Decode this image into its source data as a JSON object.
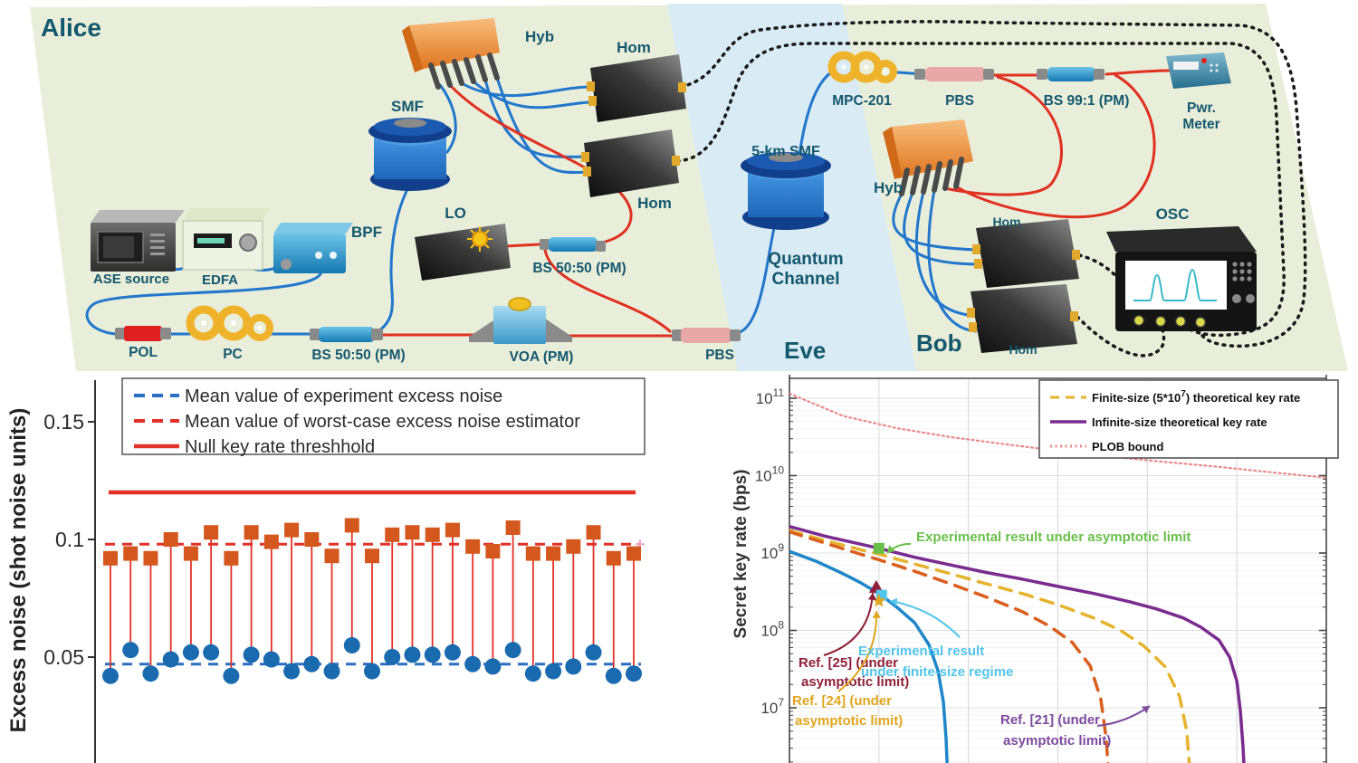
{
  "figure": {
    "panels": [
      "experimental-setup-diagram",
      "excess-noise-chart",
      "secret-key-rate-chart"
    ]
  },
  "diagram": {
    "parties": {
      "alice": "Alice",
      "eve": "Eve",
      "bob": "Bob"
    },
    "labels": {
      "ase_source": "ASE source",
      "edfa": "EDFA",
      "bpf": "BPF",
      "smf": "SMF",
      "hyb_alice": "Hyb",
      "hom_alice_top": "Hom",
      "hom_alice_bottom": "Hom",
      "lo": "LO",
      "bs5050_mid": "BS 50:50 (PM)",
      "pol": "POL",
      "pc": "PC",
      "bs5050_bottom": "BS 50:50 (PM)",
      "voa": "VOA (PM)",
      "pbs_alice": "PBS",
      "smf5": "5-km SMF",
      "quantum_line1": "Quantum",
      "quantum_line2": "Channel",
      "mpc": "MPC-201",
      "pbs_bob": "PBS",
      "bs991": "BS 99:1 (PM)",
      "pwr_line1": "Pwr.",
      "pwr_line2": "Meter",
      "hyb_bob": "Hyb",
      "hom_bob_top": "Hom",
      "hom_bob_bottom": "Hom",
      "osc": "OSC"
    },
    "colors": {
      "background": "#e9eedb",
      "eve_band": "#d9ebf5",
      "label_text": "#14586e",
      "fiber_blue": "#2277cc",
      "fiber_red": "#e03020",
      "wire_dashed": "#1a1a1a"
    }
  },
  "chart_data": [
    {
      "type": "scatter",
      "title": "",
      "xlabel": "",
      "ylabel": "Excess noise (shot noise units)",
      "yticks": [
        0.05,
        0.1,
        0.15
      ],
      "ylim": [
        0.005,
        0.168
      ],
      "grid": false,
      "legend_position": "top-left",
      "x": [
        1,
        2,
        3,
        4,
        5,
        6,
        7,
        8,
        9,
        10,
        11,
        12,
        13,
        14,
        15,
        16,
        17,
        18,
        19,
        20,
        21,
        22,
        23,
        24,
        25,
        26,
        27
      ],
      "series": [
        {
          "name": "Worst-case excess noise estimator",
          "marker": "square",
          "color": "#d4581e",
          "values": [
            0.092,
            0.094,
            0.092,
            0.1,
            0.094,
            0.103,
            0.092,
            0.103,
            0.099,
            0.104,
            0.1,
            0.093,
            0.106,
            0.093,
            0.102,
            0.103,
            0.102,
            0.104,
            0.097,
            0.095,
            0.105,
            0.094,
            0.094,
            0.097,
            0.103,
            0.092,
            0.094
          ]
        },
        {
          "name": "Experiment excess noise",
          "marker": "circle",
          "color": "#1a6ab0",
          "values": [
            0.042,
            0.053,
            0.043,
            0.049,
            0.052,
            0.052,
            0.042,
            0.051,
            0.049,
            0.044,
            0.047,
            0.044,
            0.055,
            0.044,
            0.05,
            0.051,
            0.051,
            0.052,
            0.047,
            0.046,
            0.053,
            0.043,
            0.044,
            0.046,
            0.052,
            0.042,
            0.043
          ]
        }
      ],
      "reference_lines": [
        {
          "label": "Mean value of experiment excess noise",
          "style": "dashed",
          "color": "#2a6fc2",
          "value": 0.047
        },
        {
          "label": "Mean value of worst-case excess noise estimator",
          "style": "dashed",
          "color": "#e23128",
          "value": 0.098
        },
        {
          "label": "Null key rate threshhold",
          "style": "solid",
          "color": "#e23128",
          "value": 0.12
        }
      ]
    },
    {
      "type": "line",
      "title": "",
      "xlabel": "",
      "ylabel": "Secret key rate (bps)",
      "yscale": "log",
      "ylim": [
        2000000.0,
        200000000000.0
      ],
      "xlim": [
        0,
        30
      ],
      "x_gridlines": [
        5,
        10,
        15,
        20,
        25,
        30
      ],
      "x_tick_labels_visible": false,
      "grid": true,
      "legend_position": "top-right",
      "yticks": [
        {
          "base": "10",
          "exp": "11",
          "value": 100000000000.0
        },
        {
          "base": "10",
          "exp": "10",
          "value": 10000000000.0
        },
        {
          "base": "10",
          "exp": "9",
          "value": 1000000000.0
        },
        {
          "base": "10",
          "exp": "8",
          "value": 100000000.0
        },
        {
          "base": "10",
          "exp": "7",
          "value": 10000000.0
        }
      ],
      "legend": [
        {
          "pre": "Finite-size (5*10",
          "sup": "7",
          "post": ") theoretical key rate",
          "style": "dashed",
          "color": "#e5b32d"
        },
        {
          "pre": "Infinite-size theoretical key rate",
          "sup": "",
          "post": "",
          "style": "solid",
          "color": "#7a2b8f"
        },
        {
          "pre": "PLOB bound",
          "sup": "",
          "post": "",
          "style": "dotted",
          "color": "#e98989"
        }
      ],
      "series": [
        {
          "id": "plob",
          "name": "PLOB bound",
          "color": "#e98989",
          "style": "dotted",
          "width": 2.2,
          "points": [
            [
              0,
              115000000000.0
            ],
            [
              3,
              59000000000.0
            ],
            [
              6,
              41000000000.0
            ],
            [
              9,
              31500000000.0
            ],
            [
              12,
              25500000000.0
            ],
            [
              15,
              21000000000.0
            ],
            [
              18,
              17500000000.0
            ],
            [
              21,
              15000000000.0
            ],
            [
              24,
              13000000000.0
            ],
            [
              27,
              11000000000.0
            ],
            [
              30,
              9400000000.0
            ]
          ]
        },
        {
          "id": "infinite",
          "name": "Infinite-size theoretical key rate",
          "color": "#7a2b8f",
          "style": "solid",
          "width": 3.5,
          "points": [
            [
              0,
              2200000000.0
            ],
            [
              2,
              1650000000.0
            ],
            [
              4,
              1300000000.0
            ],
            [
              5,
              1150000000.0
            ],
            [
              7,
              880000000.0
            ],
            [
              9,
              700000000.0
            ],
            [
              11,
              560000000.0
            ],
            [
              13,
              460000000.0
            ],
            [
              15,
              370000000.0
            ],
            [
              17,
              300000000.0
            ],
            [
              19,
              235000000.0
            ],
            [
              20.5,
              190000000.0
            ],
            [
              22,
              145000000.0
            ],
            [
              23,
              110000000.0
            ],
            [
              24,
              75000000.0
            ],
            [
              24.6,
              45000000.0
            ],
            [
              25,
              22000000.0
            ],
            [
              25.2,
              9000000.0
            ],
            [
              25.35,
              3000000.0
            ],
            [
              25.45,
              1000000.0
            ]
          ]
        },
        {
          "id": "finite",
          "name": "Finite-size (5*10^7) theoretical key rate",
          "color": "#e5b32d",
          "style": "dashed",
          "width": 3.5,
          "points": [
            [
              0,
              1950000000.0
            ],
            [
              2,
              1450000000.0
            ],
            [
              4,
              1100000000.0
            ],
            [
              5,
              970000000.0
            ],
            [
              7,
              720000000.0
            ],
            [
              9,
              540000000.0
            ],
            [
              11,
              400000000.0
            ],
            [
              13,
              300000000.0
            ],
            [
              15,
              215000000.0
            ],
            [
              17,
              145000000.0
            ],
            [
              18.5,
              100000000.0
            ],
            [
              19.8,
              63000000.0
            ],
            [
              21,
              34000000.0
            ],
            [
              21.8,
              14000000.0
            ],
            [
              22.2,
              5000000.0
            ],
            [
              22.4,
              1300000.0
            ]
          ]
        },
        {
          "id": "dashed_orange",
          "name": "secondary dashed curve",
          "color": "#d95f1e",
          "style": "dashed",
          "width": 3.5,
          "points": [
            [
              0,
              1880000000.0
            ],
            [
              2,
              1340000000.0
            ],
            [
              4,
              960000000.0
            ],
            [
              5,
              820000000.0
            ],
            [
              7,
              580000000.0
            ],
            [
              9,
              400000000.0
            ],
            [
              11,
              270000000.0
            ],
            [
              13,
              175000000.0
            ],
            [
              14.5,
              115000000.0
            ],
            [
              15.8,
              70000000.0
            ],
            [
              16.8,
              35000000.0
            ],
            [
              17.4,
              13000000.0
            ],
            [
              17.7,
              4000000.0
            ],
            [
              17.85,
              1200000.0
            ]
          ]
        },
        {
          "id": "solid_blue",
          "name": "experimental finite-size curve",
          "color": "#1f86c9",
          "style": "solid",
          "width": 3.5,
          "points": [
            [
              0,
              1050000000.0
            ],
            [
              1.5,
              780000000.0
            ],
            [
              3,
              540000000.0
            ],
            [
              4,
              410000000.0
            ],
            [
              5,
              300000000.0
            ],
            [
              6,
              200000000.0
            ],
            [
              7,
              125000000.0
            ],
            [
              7.8,
              65000000.0
            ],
            [
              8.3,
              30000000.0
            ],
            [
              8.6,
              12000000.0
            ],
            [
              8.75,
              4000000.0
            ],
            [
              8.85,
              1200000.0
            ]
          ]
        }
      ],
      "markers": [
        {
          "id": "exp_asymptotic",
          "shape": "square",
          "color": "#6abf4b",
          "x": 5,
          "y": 1150000000.0
        },
        {
          "id": "ref25_point",
          "shape": "triangle",
          "color": "#8e2039",
          "x": 4.85,
          "y": 360000000.0
        },
        {
          "id": "exp_finite",
          "shape": "square",
          "color": "#53c4ea",
          "x": 5.15,
          "y": 285000000.0
        },
        {
          "id": "ref24_point",
          "shape": "star",
          "color": "#e0a51f",
          "x": 5.0,
          "y": 240000000.0
        }
      ],
      "annotations": [
        {
          "id": "asymptotic_result",
          "lines": [
            "Experimental result under asymptotic limit"
          ],
          "color": "#6abf4b"
        },
        {
          "id": "ref25",
          "lines": [
            "Ref. [25] (under",
            "asymptotic limit)"
          ],
          "color": "#8e2039"
        },
        {
          "id": "ref24",
          "lines": [
            "Ref. [24] (under",
            "asymptotic limit)"
          ],
          "color": "#e0a51f"
        },
        {
          "id": "finite_result",
          "lines": [
            "Experimental result",
            "under finite-size regime"
          ],
          "color": "#53c4ea"
        },
        {
          "id": "ref21",
          "lines": [
            "Ref. [21] (under",
            "asymptotic limit)"
          ],
          "color": "#7d4a9e"
        }
      ]
    }
  ]
}
